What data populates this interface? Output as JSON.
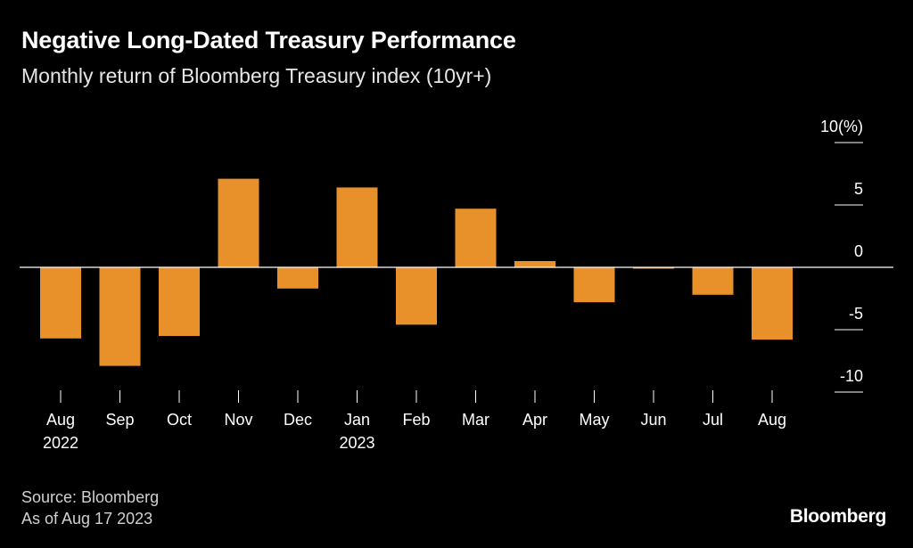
{
  "header": {
    "title": "Negative Long-Dated Treasury Performance",
    "subtitle": "Monthly return of Bloomberg Treasury index (10yr+)"
  },
  "footer": {
    "source": "Source: Bloomberg",
    "as_of": "As of Aug 17 2023",
    "brand": "Bloomberg"
  },
  "colors": {
    "bar": "#E8912B",
    "background": "#000000",
    "text": "#FFFFFF"
  },
  "chart_data": {
    "type": "bar",
    "title": "Negative Long-Dated Treasury Performance",
    "subtitle": "Monthly return of Bloomberg Treasury index (10yr+)",
    "categories": [
      "Aug",
      "Sep",
      "Oct",
      "Nov",
      "Dec",
      "Jan",
      "Feb",
      "Mar",
      "Apr",
      "May",
      "Jun",
      "Jul",
      "Aug"
    ],
    "year_labels": [
      "2022",
      "",
      "",
      "",
      "",
      "2023",
      "",
      "",
      "",
      "",
      "",
      "",
      ""
    ],
    "values": [
      -5.7,
      -7.9,
      -5.5,
      7.1,
      -1.7,
      6.4,
      -4.6,
      4.7,
      0.5,
      -2.8,
      -0.1,
      -2.2,
      -5.8
    ],
    "ylim": [
      -10,
      10
    ],
    "yticks": [
      10,
      5,
      0,
      -5,
      -10
    ],
    "ytick_labels": [
      "10(%)",
      "5",
      "0",
      "-5",
      "-10"
    ],
    "ylabel": "",
    "xlabel": "",
    "y_axis_position": "right"
  }
}
